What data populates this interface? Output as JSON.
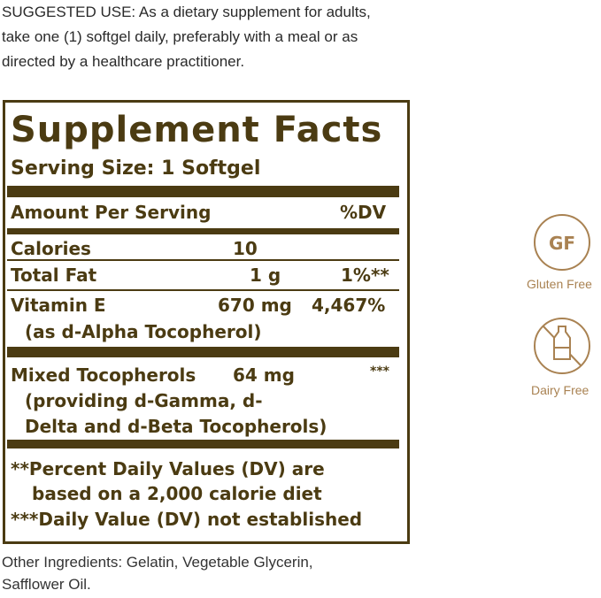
{
  "suggested_use": [
    "SUGGESTED USE: As a dietary supplement for adults,",
    "take one (1) softgel daily, preferably with a meal or as",
    "directed by a healthcare practitioner."
  ],
  "facts": {
    "title": "Supplement Facts",
    "serving_size": "Serving Size: 1 Softgel",
    "amount_header": "Amount Per Serving",
    "dv_header": "%DV",
    "rows": [
      {
        "name": "Calories",
        "amount": "10",
        "dv": ""
      },
      {
        "name": "Total Fat",
        "amount": "1 g",
        "dv": "1%**"
      },
      {
        "name": "Vitamin E",
        "amount": "670 mg",
        "dv": "4,467%",
        "sub": "(as d-Alpha Tocopherol)"
      },
      {
        "name": "Mixed Tocopherols",
        "amount": "64 mg",
        "dv": "***",
        "sub": [
          "(providing d-Gamma, d-",
          "Delta and d-Beta Tocopherols)"
        ]
      }
    ],
    "footnotes": [
      "**Percent Daily Values (DV) are",
      "based on a 2,000 calorie diet",
      "***Daily Value (DV) not established"
    ]
  },
  "other_ingredients": [
    "Other Ingredients: Gelatin, Vegetable Glycerin,",
    "Safflower Oil."
  ],
  "badges": [
    {
      "icon": "GF",
      "label": "Gluten Free"
    },
    {
      "icon": "no-milk-bottle",
      "label": "Dairy Free"
    }
  ],
  "colors": {
    "label": "#4b3b12",
    "badge": "#a98252"
  }
}
